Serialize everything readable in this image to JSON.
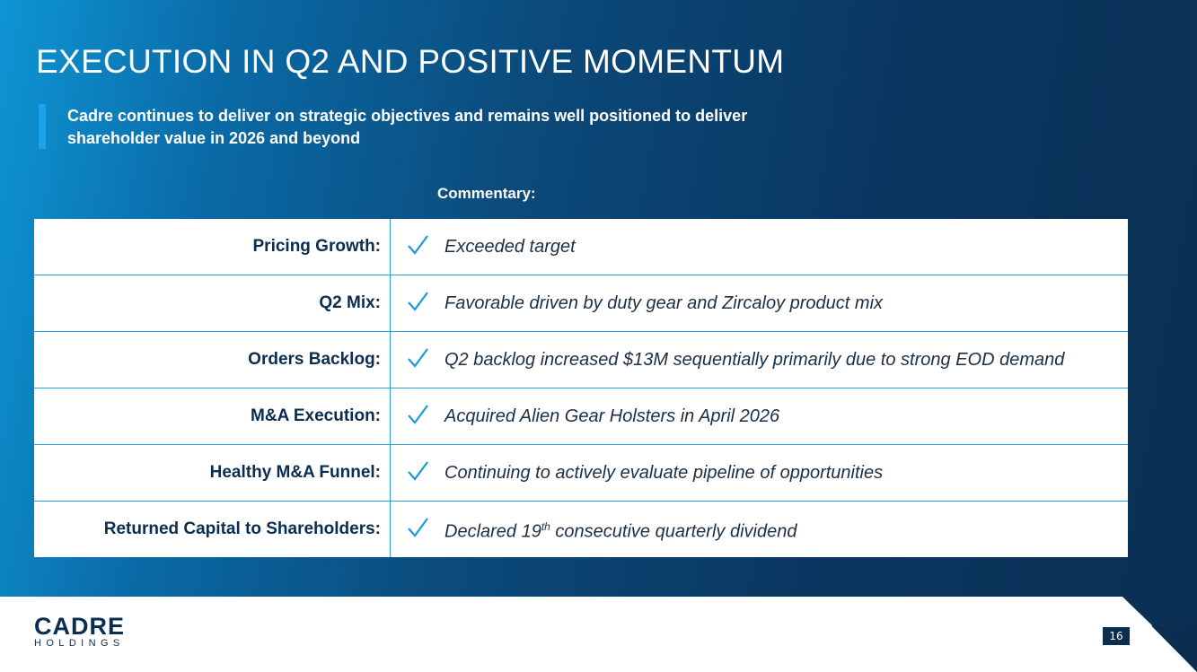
{
  "header": {
    "title": "EXECUTION IN Q2 AND POSITIVE MOMENTUM",
    "subtitle": "Cadre continues to deliver on strategic objectives and remains well positioned to deliver shareholder value in 2026 and beyond"
  },
  "table": {
    "column_header": "Commentary:",
    "rows": [
      [
        "Pricing Growth:",
        "Exceeded target"
      ],
      [
        "Q2 Mix:",
        "Favorable driven by duty gear and Zircaloy product mix"
      ],
      [
        "Orders Backlog:",
        "Q2 backlog increased $13M sequentially primarily due to strong EOD demand"
      ],
      [
        "M&A Execution:",
        "Acquired Alien Gear Holsters in April 2026"
      ],
      [
        "Healthy M&A Funnel:",
        "Continuing to actively evaluate pipeline of opportunities"
      ],
      [
        "Returned Capital to Shareholders:",
        [
          "Declared 19",
          "th",
          " consecutive quarterly dividend"
        ]
      ]
    ]
  },
  "footer": {
    "logo_main": "CADRE",
    "logo_sub": "HOLDINGS",
    "page_number": "16"
  }
}
